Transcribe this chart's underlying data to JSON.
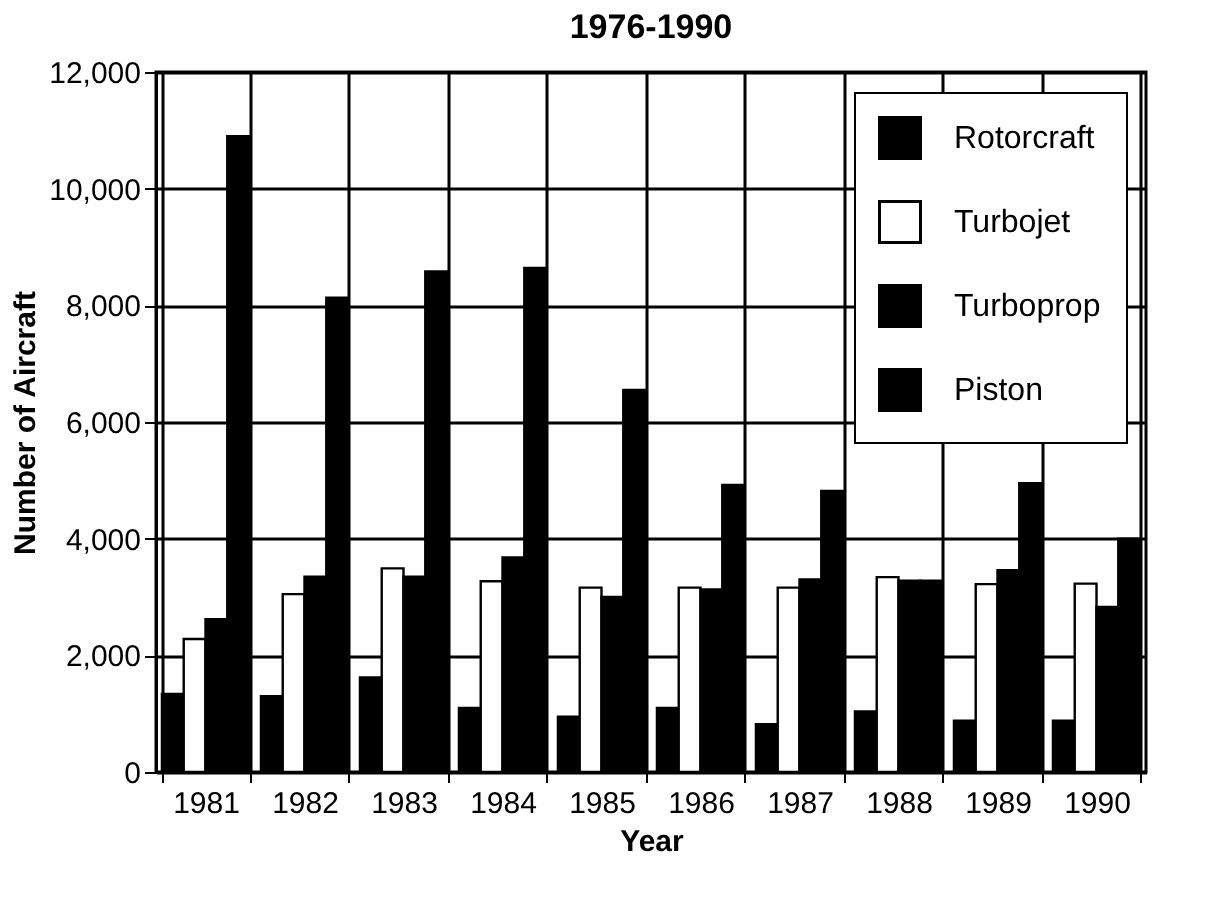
{
  "chart_data": {
    "type": "bar",
    "title": "1976-1990",
    "xlabel": "Year",
    "ylabel": "Number of Aircraft",
    "categories": [
      "1981",
      "1982",
      "1983",
      "1984",
      "1985",
      "1986",
      "1987",
      "1988",
      "1989",
      "1990"
    ],
    "series": [
      {
        "name": "Rotorcraft",
        "color": "#000000",
        "values": [
          1340,
          1300,
          1620,
          1100,
          950,
          1100,
          820,
          1040,
          880,
          880
        ]
      },
      {
        "name": "Turbojet",
        "color": "#ffffff",
        "values": [
          2280,
          3050,
          3490,
          3270,
          3160,
          3160,
          3160,
          3340,
          3220,
          3230
        ]
      },
      {
        "name": "Turboprop",
        "color": "#000000",
        "values": [
          2620,
          3350,
          3350,
          3680,
          3000,
          3130,
          3300,
          3280,
          3460,
          2830
        ]
      },
      {
        "name": "Piston",
        "color": "#000000",
        "values": [
          10900,
          8130,
          8580,
          8640,
          6550,
          4920,
          4820,
          3280,
          4950,
          4000
        ]
      }
    ],
    "ylim": [
      0,
      12000
    ],
    "yticks": [
      {
        "value": 0,
        "label": "0"
      },
      {
        "value": 2000,
        "label": "2,000"
      },
      {
        "value": 4000,
        "label": "4,000"
      },
      {
        "value": 6000,
        "label": "6,000"
      },
      {
        "value": 8000,
        "label": "8,000"
      },
      {
        "value": 10000,
        "label": "10,000"
      },
      {
        "value": 12000,
        "label": "12,000"
      }
    ],
    "grid": true,
    "legend": "top right"
  }
}
